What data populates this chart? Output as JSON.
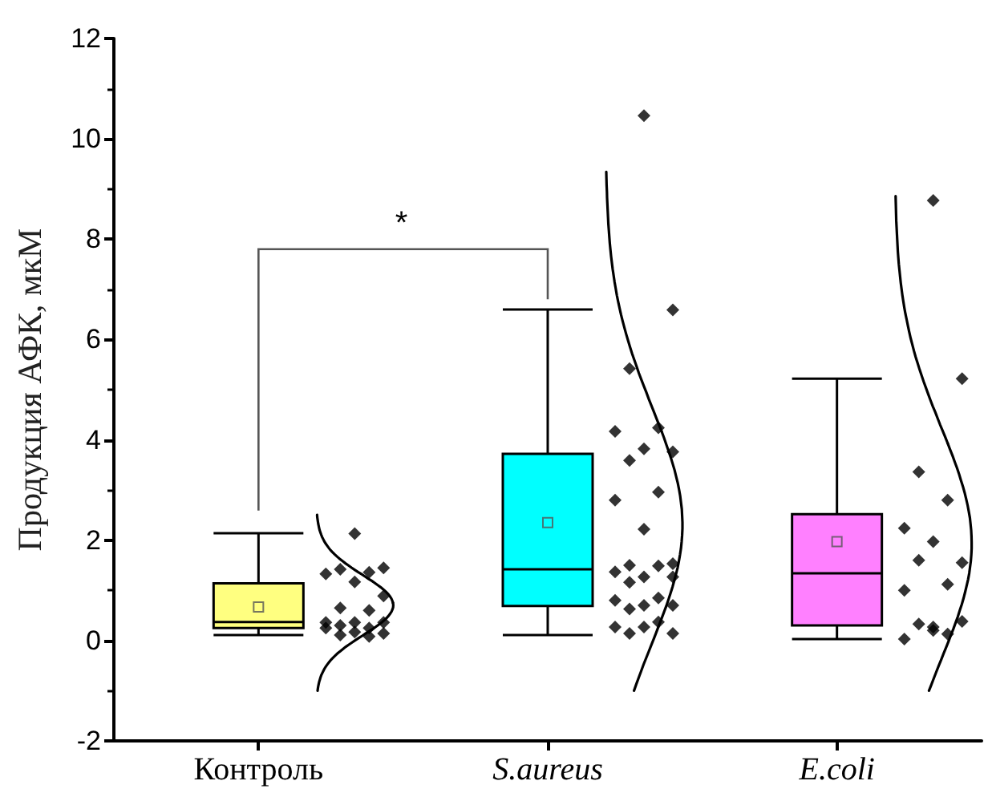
{
  "chart_data": {
    "type": "box",
    "ylabel": "Продукция АФК, мкМ",
    "categories": [
      "Контроль",
      "S.aureus",
      "E.coli"
    ],
    "colors": [
      "#ffff80",
      "#00ffff",
      "#ff80ff"
    ],
    "boxes": [
      {
        "low": 0.11,
        "q1": 0.25,
        "median": 0.37,
        "q3": 1.14,
        "high": 2.14,
        "mean": 0.67
      },
      {
        "low": 0.11,
        "q1": 0.69,
        "median": 1.42,
        "q3": 3.72,
        "high": 6.6,
        "mean": 2.35
      },
      {
        "low": 0.03,
        "q1": 0.3,
        "median": 1.34,
        "q3": 2.52,
        "high": 5.22,
        "mean": 1.97
      }
    ],
    "series": [
      {
        "type": "scatter",
        "color": "#000000",
        "marker": "diamond",
        "x": [
          "Контроль",
          "Контроль",
          "Контроль",
          "Контроль",
          "Контроль",
          "Контроль",
          "Контроль",
          "Контроль",
          "Контроль",
          "Контроль",
          "Контроль",
          "Контроль",
          "Контроль",
          "Контроль",
          "Контроль",
          "Контроль",
          "Контроль",
          "Контроль",
          "Контроль",
          "S.aureus",
          "S.aureus",
          "S.aureus",
          "S.aureus",
          "S.aureus",
          "S.aureus",
          "S.aureus",
          "S.aureus",
          "S.aureus",
          "S.aureus",
          "S.aureus",
          "S.aureus",
          "S.aureus",
          "S.aureus",
          "S.aureus",
          "S.aureus",
          "S.aureus",
          "S.aureus",
          "S.aureus",
          "S.aureus",
          "S.aureus",
          "S.aureus",
          "S.aureus",
          "S.aureus",
          "S.aureus",
          "S.aureus",
          "S.aureus",
          "S.aureus",
          "E.coli",
          "E.coli",
          "E.coli",
          "E.coli",
          "E.coli",
          "E.coli",
          "E.coli",
          "E.coli",
          "E.coli",
          "E.coli",
          "E.coli",
          "E.coli",
          "E.coli",
          "E.coli",
          "E.coli",
          "E.coli"
        ],
        "values": [
          2.13,
          1.45,
          1.42,
          1.36,
          1.33,
          1.17,
          0.89,
          0.65,
          0.6,
          0.36,
          0.36,
          0.36,
          0.3,
          0.25,
          0.25,
          0.17,
          0.14,
          0.11,
          0.08,
          10.46,
          6.59,
          5.42,
          4.24,
          4.17,
          3.82,
          3.76,
          3.59,
          2.96,
          2.8,
          2.22,
          1.53,
          1.5,
          1.49,
          1.37,
          1.27,
          1.27,
          1.16,
          0.85,
          0.8,
          0.7,
          0.7,
          0.63,
          0.37,
          0.27,
          0.27,
          0.14,
          0.14,
          8.77,
          5.22,
          3.36,
          2.8,
          2.24,
          1.97,
          1.55,
          1.6,
          1.12,
          1.0,
          0.27,
          0.38,
          0.33,
          0.13,
          0.03,
          0.2
        ]
      }
    ],
    "ylim": [
      -2,
      12
    ],
    "yticks": [
      -2,
      0,
      2,
      4,
      6,
      8,
      10,
      12
    ],
    "annotations": [
      "*"
    ]
  }
}
